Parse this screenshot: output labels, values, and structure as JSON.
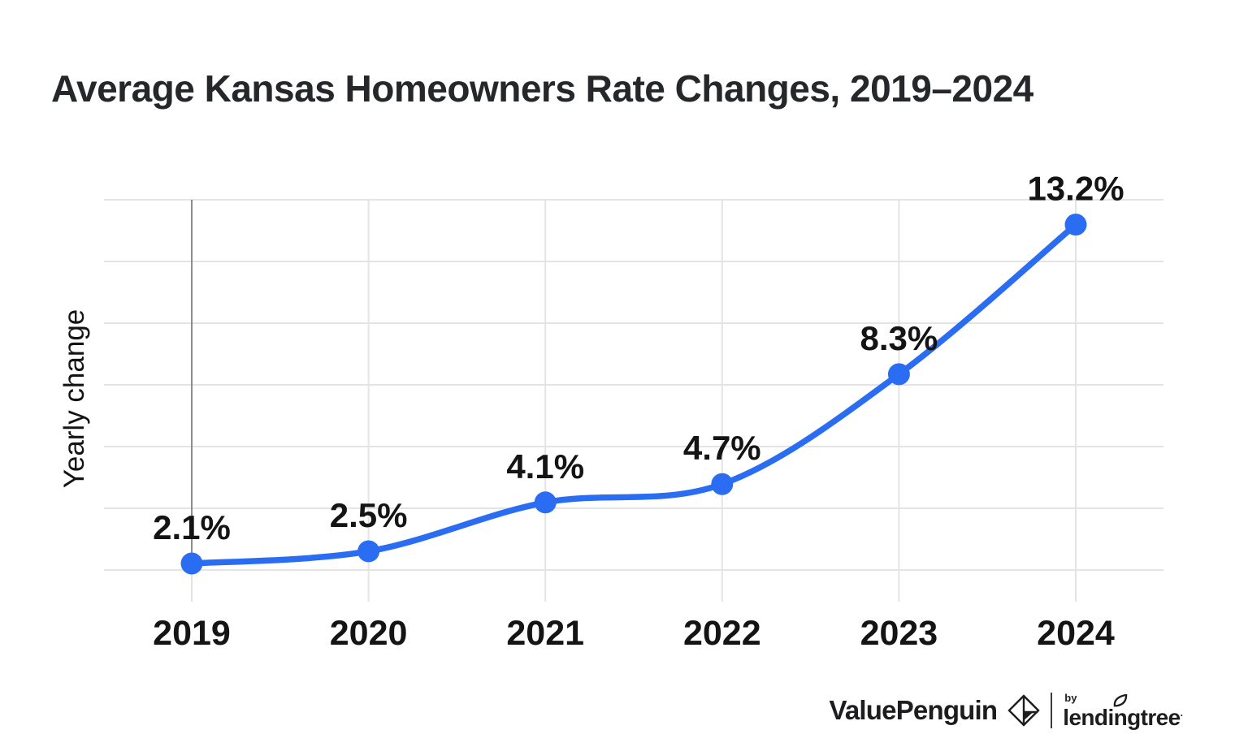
{
  "title": "Average Kansas Homeowners Rate Changes, 2019–2024",
  "chart_data": {
    "type": "line",
    "title": "Average Kansas Homeowners Rate Changes, 2019–2024",
    "xlabel": "",
    "ylabel": "Yearly change",
    "categories": [
      "2019",
      "2020",
      "2021",
      "2022",
      "2023",
      "2024"
    ],
    "values": [
      2.1,
      2.5,
      4.1,
      4.7,
      8.3,
      13.2
    ],
    "point_labels": [
      "2.1%",
      "2.5%",
      "4.1%",
      "4.7%",
      "8.3%",
      "13.2%"
    ],
    "ylim": [
      1.9,
      14.0
    ],
    "y_tick_labels_shown": false,
    "grid": true,
    "legend_position": "none",
    "colors": {
      "line": "#2b6df2",
      "point": "#2b6df2",
      "grid": "#e4e4e4",
      "axis": "#8d8d8d",
      "label": "#141414"
    }
  },
  "footer": {
    "brand": "ValuePenguin",
    "by": "by",
    "partner": "lendingtree",
    "trademark": "·"
  }
}
